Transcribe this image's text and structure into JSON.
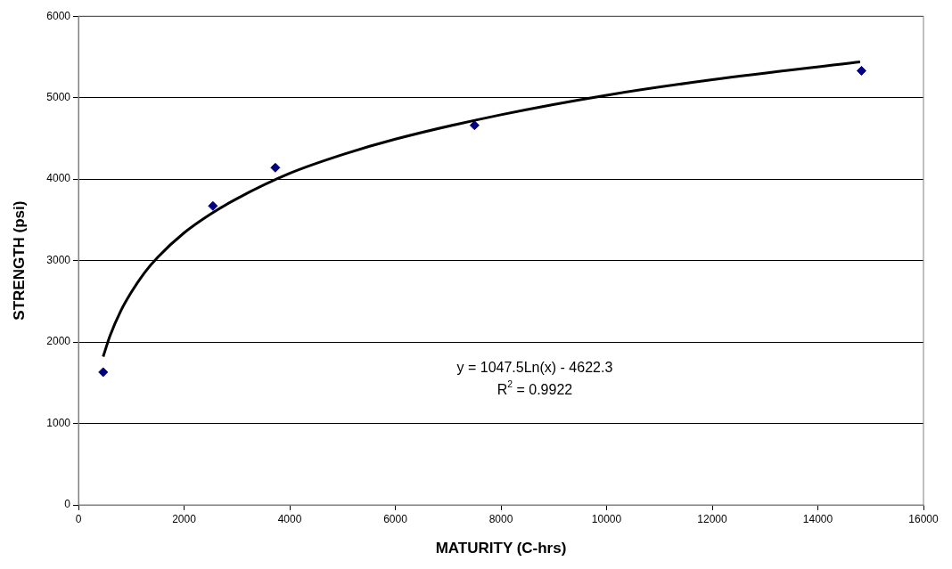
{
  "chart_data": {
    "type": "scatter",
    "xlabel": "MATURITY (C-hrs)",
    "ylabel": "STRENGTH (psi)",
    "xlim": [
      0,
      16000
    ],
    "xticks": [
      0,
      2000,
      4000,
      6000,
      8000,
      10000,
      12000,
      14000,
      16000
    ],
    "ylim": [
      0,
      6000
    ],
    "yticks": [
      0,
      1000,
      2000,
      3000,
      4000,
      5000,
      6000
    ],
    "grid": "y",
    "series": [
      {
        "type": "scatter",
        "color": "#000080",
        "marker": "diamond",
        "x": [
          468,
          2546,
          3728,
          7500,
          14826
        ],
        "values": [
          1630,
          3670,
          4140,
          4660,
          5330
        ]
      },
      {
        "type": "line",
        "color": "#000000",
        "marker": "none",
        "line_style": "solid",
        "x": [
          468,
          600,
          800,
          1000,
          1250,
          1500,
          2000,
          2500,
          3000,
          4000,
          5000,
          6000,
          8000,
          10000,
          12000,
          14800
        ],
        "values": [
          1820,
          2080,
          2380,
          2610,
          2850,
          3040,
          3340,
          3570,
          3760,
          4070,
          4300,
          4490,
          4790,
          5030,
          5220,
          5440
        ]
      }
    ],
    "annotations": [
      "y = 1047.5Ln(x) - 4622.3",
      "R$^{2}$ = 0.9922"
    ]
  }
}
